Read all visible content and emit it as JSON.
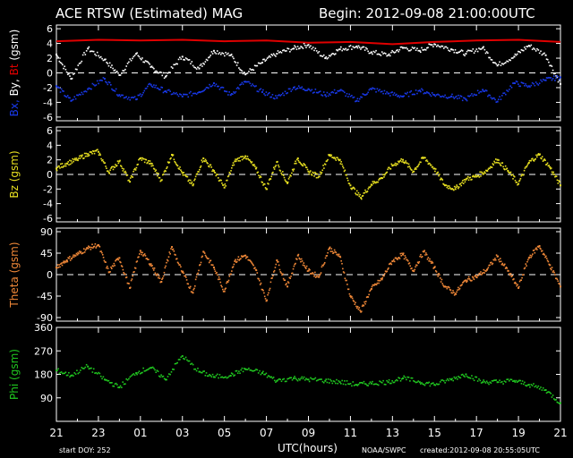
{
  "header": {
    "title": "ACE RTSW (Estimated) MAG",
    "begin": "Begin: 2012-09-08 21:00:00UTC"
  },
  "footer": {
    "start_doy": "start DOY:  252",
    "xlabel": "UTC(hours)",
    "source": "NOAA/SWPC",
    "created": "created:2012-09-08 20:55:05UTC"
  },
  "colors": {
    "bt": "#e00000",
    "bx": "#1838e8",
    "by": "#ffffff",
    "bz": "#e8e020",
    "theta": "#f08838",
    "phi": "#20c820",
    "axes": "#ffffff",
    "background": "#000000"
  },
  "chart_data": [
    {
      "type": "line",
      "id": "bxbyt",
      "ylabel_parts": [
        {
          "text": "Bx,",
          "color": "#1838e8"
        },
        {
          "text": " By,",
          "color": "#ffffff"
        },
        {
          "text": " Bt",
          "color": "#e00000"
        },
        {
          "text": " (gsm)",
          "color": "#ffffff"
        }
      ],
      "ylim": [
        -6.5,
        6.5
      ],
      "yticks": [
        6,
        4,
        2,
        0,
        -2,
        -4,
        -6
      ],
      "zero_line": true,
      "xlim": [
        0,
        24
      ],
      "xticks": [
        0,
        2,
        4,
        6,
        8,
        10,
        12,
        14,
        16,
        18,
        20,
        22,
        24
      ],
      "series": [
        {
          "name": "Bt",
          "color": "#e00000",
          "style": "line",
          "x": [
            0,
            2,
            4,
            6,
            8,
            10,
            12,
            14,
            16,
            18,
            20,
            22,
            24
          ],
          "y": [
            4.3,
            4.5,
            4.4,
            4.5,
            4.3,
            4.4,
            4.1,
            4.2,
            3.9,
            4.2,
            4.4,
            4.5,
            4.2
          ]
        },
        {
          "name": "By",
          "color": "#ffffff",
          "style": "dots",
          "x": [
            0,
            0.7,
            1.5,
            2.3,
            3,
            3.8,
            4.5,
            5.2,
            6,
            6.8,
            7.5,
            8.3,
            9,
            9.8,
            10.5,
            11.3,
            12,
            12.8,
            13.5,
            14.3,
            15,
            15.8,
            16.5,
            17.3,
            18,
            18.8,
            19.5,
            20.3,
            21,
            21.8,
            22.5,
            23.3,
            24
          ],
          "y": [
            2.5,
            -0.8,
            3.3,
            1.8,
            -0.3,
            2.6,
            0.8,
            -0.5,
            2.2,
            0.6,
            3.0,
            2.4,
            -0.2,
            1.4,
            2.6,
            3.3,
            3.8,
            2.0,
            3.2,
            3.6,
            2.8,
            2.4,
            3.4,
            3.0,
            3.9,
            3.2,
            2.6,
            3.4,
            1.0,
            2.2,
            3.7,
            2.4,
            -1.5
          ]
        },
        {
          "name": "Bx",
          "color": "#1838e8",
          "style": "dots",
          "x": [
            0,
            0.7,
            1.5,
            2.3,
            3,
            3.8,
            4.5,
            5.2,
            6,
            6.8,
            7.5,
            8.3,
            9,
            9.8,
            10.5,
            11.3,
            12,
            12.8,
            13.5,
            14.3,
            15,
            15.8,
            16.5,
            17.3,
            18,
            18.8,
            19.5,
            20.3,
            21,
            21.8,
            22.5,
            23.3,
            24
          ],
          "y": [
            -1.8,
            -3.8,
            -2.2,
            -0.8,
            -3.0,
            -3.6,
            -1.6,
            -2.5,
            -3.2,
            -2.6,
            -1.4,
            -3.0,
            -1.2,
            -2.6,
            -3.4,
            -2.0,
            -2.2,
            -3.0,
            -2.4,
            -3.8,
            -2.2,
            -2.8,
            -3.2,
            -2.4,
            -3.0,
            -3.2,
            -3.6,
            -2.3,
            -3.9,
            -1.4,
            -1.8,
            -1.0,
            -0.6
          ]
        }
      ]
    },
    {
      "type": "scatter",
      "id": "bz",
      "ylabel_parts": [
        {
          "text": "Bz  (gsm)",
          "color": "#e8e020"
        }
      ],
      "ylim": [
        -6.5,
        6.5
      ],
      "yticks": [
        6,
        4,
        2,
        0,
        -2,
        -4,
        -6
      ],
      "zero_line": true,
      "xlim": [
        0,
        24
      ],
      "series": [
        {
          "name": "Bz",
          "color": "#e8e020",
          "style": "dots",
          "x": [
            0,
            0.5,
            1,
            1.5,
            2,
            2.5,
            3,
            3.5,
            4,
            4.5,
            5,
            5.5,
            6,
            6.5,
            7,
            7.5,
            8,
            8.5,
            9,
            9.5,
            10,
            10.5,
            11,
            11.5,
            12,
            12.5,
            13,
            13.5,
            14,
            14.5,
            15,
            15.5,
            16,
            16.5,
            17,
            17.5,
            18,
            18.5,
            19,
            19.5,
            20,
            20.5,
            21,
            21.5,
            22,
            22.5,
            23,
            23.5,
            24
          ],
          "y": [
            0.8,
            1.5,
            2.0,
            2.8,
            3.1,
            0.3,
            1.8,
            -1.0,
            2.2,
            1.5,
            -0.8,
            2.7,
            0.2,
            -1.5,
            2.2,
            0.5,
            -1.8,
            1.8,
            2.5,
            0.8,
            -2.0,
            1.7,
            -1.2,
            2.2,
            0.4,
            -0.3,
            2.6,
            2.0,
            -1.5,
            -3.2,
            -1.4,
            -0.5,
            1.2,
            2.0,
            0.4,
            2.3,
            0.8,
            -1.5,
            -2.0,
            -0.7,
            -0.3,
            0.5,
            2.0,
            0.5,
            -1.3,
            1.6,
            2.7,
            1.0,
            -1.5
          ]
        }
      ]
    },
    {
      "type": "scatter",
      "id": "theta",
      "ylabel_parts": [
        {
          "text": "Theta  (gsm)",
          "color": "#f08838"
        }
      ],
      "ylim": [
        -97.5,
        97.5
      ],
      "yticks": [
        90,
        45,
        0,
        -45,
        -90
      ],
      "zero_line": true,
      "xlim": [
        0,
        24
      ],
      "series": [
        {
          "name": "Theta",
          "color": "#f08838",
          "style": "dots",
          "x": [
            0,
            0.5,
            1,
            1.5,
            2,
            2.5,
            3,
            3.5,
            4,
            4.5,
            5,
            5.5,
            6,
            6.5,
            7,
            7.5,
            8,
            8.5,
            9,
            9.5,
            10,
            10.5,
            11,
            11.5,
            12,
            12.5,
            13,
            13.5,
            14,
            14.5,
            15,
            15.5,
            16,
            16.5,
            17,
            17.5,
            18,
            18.5,
            19,
            19.5,
            20,
            20.5,
            21,
            21.5,
            22,
            22.5,
            23,
            23.5,
            24
          ],
          "y": [
            15,
            30,
            42,
            55,
            62,
            5,
            35,
            -28,
            50,
            22,
            -15,
            58,
            5,
            -38,
            48,
            15,
            -35,
            28,
            40,
            10,
            -55,
            30,
            -25,
            40,
            8,
            -5,
            55,
            38,
            -45,
            -78,
            -30,
            -10,
            28,
            42,
            8,
            48,
            15,
            -25,
            -40,
            -12,
            -5,
            10,
            38,
            8,
            -28,
            35,
            60,
            20,
            -25
          ]
        }
      ]
    },
    {
      "type": "scatter",
      "id": "phi",
      "ylabel_parts": [
        {
          "text": "Phi  (gsm)",
          "color": "#20c820"
        }
      ],
      "ylim": [
        0,
        360
      ],
      "yticks": [
        360,
        270,
        180,
        90
      ],
      "zero_line": false,
      "xlim": [
        0,
        24
      ],
      "series": [
        {
          "name": "Phi",
          "color": "#20c820",
          "style": "dots",
          "x": [
            0,
            0.7,
            1.5,
            2.3,
            3,
            3.8,
            4.5,
            5.2,
            6,
            6.8,
            7.5,
            8.3,
            9,
            9.8,
            10.5,
            11.3,
            12,
            12.8,
            13.5,
            14.3,
            15,
            15.8,
            16.5,
            17.3,
            18,
            18.8,
            19.5,
            20.3,
            21,
            21.8,
            22.5,
            23.3,
            24
          ],
          "y": [
            195,
            175,
            210,
            160,
            130,
            185,
            205,
            160,
            250,
            190,
            170,
            175,
            200,
            185,
            155,
            165,
            160,
            155,
            150,
            140,
            145,
            150,
            165,
            150,
            140,
            160,
            180,
            150,
            150,
            155,
            140,
            120,
            70
          ]
        }
      ]
    }
  ]
}
